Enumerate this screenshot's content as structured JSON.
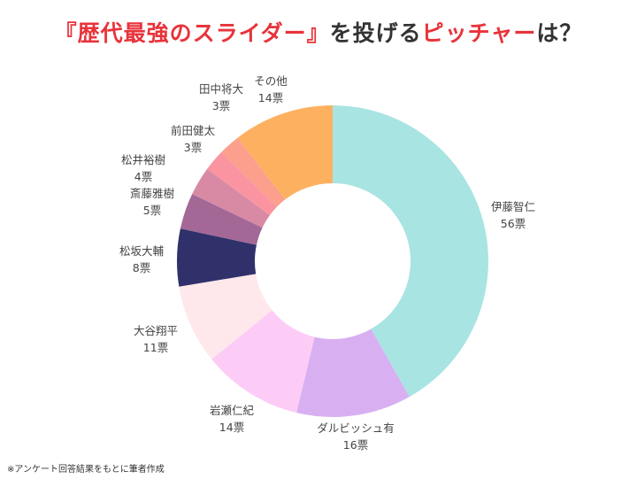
{
  "title": {
    "part1": "『歴代最強のスライダー』",
    "part2": "を投げる",
    "part3": "ピッチャー",
    "part4": "は？"
  },
  "footnote": "※アンケート回答結果をもとに筆者作成",
  "chart_data": {
    "type": "pie",
    "subtype": "donut",
    "title": "『歴代最強のスライダー』を投げるピッチャーは？",
    "unit": "票",
    "categories": [
      "伊藤智仁",
      "ダルビッシュ有",
      "岩瀬仁紀",
      "大谷翔平",
      "松坂大輔",
      "斎藤雅樹",
      "松井裕樹",
      "前田健太",
      "田中将大",
      "その他"
    ],
    "values": [
      56,
      16,
      14,
      11,
      8,
      5,
      4,
      3,
      3,
      14
    ],
    "value_labels": [
      "56票",
      "16票",
      "14票",
      "11票",
      "8票",
      "5票",
      "4票",
      "3票",
      "3票",
      "14票"
    ],
    "colors": [
      "#a8e4e2",
      "#d8b0f2",
      "#fcccf7",
      "#ffe8eb",
      "#30316b",
      "#a46896",
      "#d88aa5",
      "#fa94a0",
      "#fc9f8c",
      "#fdb160"
    ]
  }
}
